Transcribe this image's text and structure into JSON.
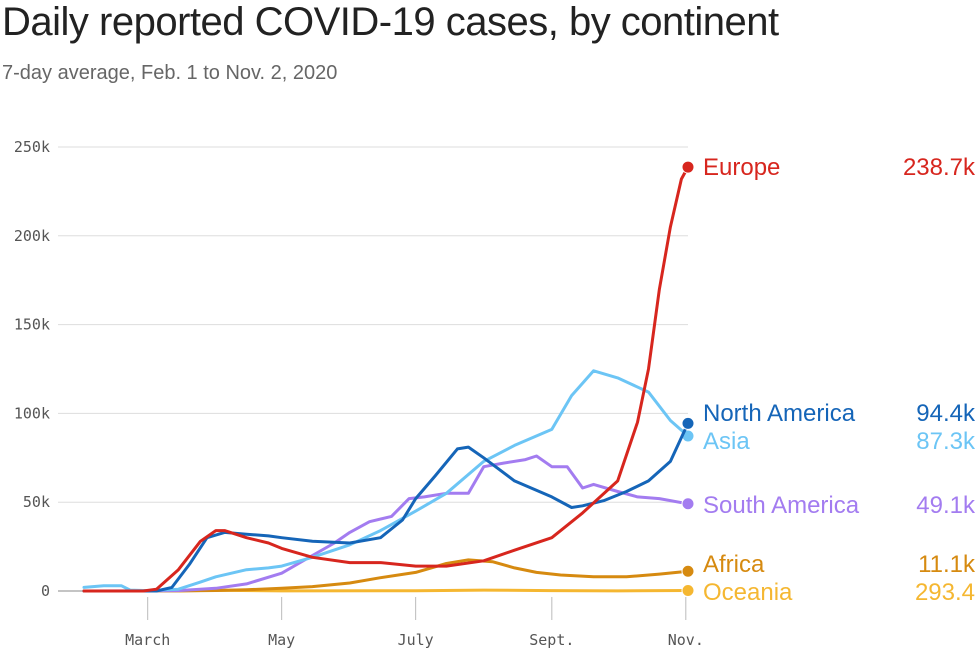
{
  "title": "Daily reported COVID-19 cases, by continent",
  "subtitle": "7-day average, Feb. 1 to Nov. 2, 2020",
  "chart_data": {
    "type": "line",
    "xlabel": "",
    "ylabel": "",
    "xlim": [
      "2020-02-01",
      "2020-11-02"
    ],
    "ylim": [
      0,
      250000
    ],
    "yticks": [
      0,
      50000,
      100000,
      150000,
      200000,
      250000
    ],
    "ytick_labels": [
      "0",
      "50k",
      "100k",
      "150k",
      "200k",
      "250k"
    ],
    "xticks": [
      "2020-03-01",
      "2020-05-01",
      "2020-07-01",
      "2020-09-01",
      "2020-11-01"
    ],
    "xtick_labels": [
      "March",
      "May",
      "July",
      "Sept.",
      "Nov."
    ],
    "grid": "horizontal",
    "legend": "end-of-line labels",
    "series": [
      {
        "name": "Oceania",
        "color": "#f5b731",
        "end_label": "293.4",
        "points": [
          [
            "2020-02-01",
            0
          ],
          [
            "2020-03-15",
            80
          ],
          [
            "2020-04-01",
            400
          ],
          [
            "2020-05-01",
            50
          ],
          [
            "2020-07-01",
            150
          ],
          [
            "2020-08-01",
            500
          ],
          [
            "2020-09-01",
            200
          ],
          [
            "2020-10-01",
            60
          ],
          [
            "2020-11-02",
            293
          ]
        ]
      },
      {
        "name": "Africa",
        "color": "#d68a10",
        "end_label": "11.1k",
        "points": [
          [
            "2020-02-01",
            0
          ],
          [
            "2020-03-15",
            50
          ],
          [
            "2020-04-01",
            300
          ],
          [
            "2020-04-15",
            700
          ],
          [
            "2020-05-01",
            1500
          ],
          [
            "2020-05-15",
            2500
          ],
          [
            "2020-06-01",
            4500
          ],
          [
            "2020-06-15",
            7500
          ],
          [
            "2020-07-01",
            10500
          ],
          [
            "2020-07-15",
            15500
          ],
          [
            "2020-07-25",
            17500
          ],
          [
            "2020-08-05",
            16500
          ],
          [
            "2020-08-15",
            13000
          ],
          [
            "2020-08-25",
            10500
          ],
          [
            "2020-09-05",
            9000
          ],
          [
            "2020-09-20",
            8000
          ],
          [
            "2020-10-05",
            8000
          ],
          [
            "2020-10-20",
            9500
          ],
          [
            "2020-11-02",
            11100
          ]
        ]
      },
      {
        "name": "South America",
        "color": "#a37cf0",
        "end_label": "49.1k",
        "points": [
          [
            "2020-02-01",
            0
          ],
          [
            "2020-03-15",
            200
          ],
          [
            "2020-04-01",
            1500
          ],
          [
            "2020-04-15",
            4000
          ],
          [
            "2020-05-01",
            10000
          ],
          [
            "2020-05-15",
            20000
          ],
          [
            "2020-05-25",
            27000
          ],
          [
            "2020-06-01",
            33000
          ],
          [
            "2020-06-10",
            39000
          ],
          [
            "2020-06-20",
            42000
          ],
          [
            "2020-06-28",
            52000
          ],
          [
            "2020-07-05",
            53000
          ],
          [
            "2020-07-15",
            55000
          ],
          [
            "2020-07-25",
            55000
          ],
          [
            "2020-08-01",
            70000
          ],
          [
            "2020-08-10",
            72000
          ],
          [
            "2020-08-20",
            74000
          ],
          [
            "2020-08-25",
            76000
          ],
          [
            "2020-09-01",
            70000
          ],
          [
            "2020-09-08",
            70000
          ],
          [
            "2020-09-15",
            58000
          ],
          [
            "2020-09-20",
            60000
          ],
          [
            "2020-10-01",
            56000
          ],
          [
            "2020-10-10",
            53000
          ],
          [
            "2020-10-20",
            52000
          ],
          [
            "2020-11-02",
            49100
          ]
        ]
      },
      {
        "name": "Asia",
        "color": "#6cc5f5",
        "end_label": "87.3k",
        "points": [
          [
            "2020-02-01",
            2000
          ],
          [
            "2020-02-10",
            3000
          ],
          [
            "2020-02-18",
            3000
          ],
          [
            "2020-02-22",
            500
          ],
          [
            "2020-03-01",
            200
          ],
          [
            "2020-03-15",
            1000
          ],
          [
            "2020-03-25",
            5000
          ],
          [
            "2020-04-01",
            8000
          ],
          [
            "2020-04-15",
            12000
          ],
          [
            "2020-04-25",
            13000
          ],
          [
            "2020-05-01",
            14000
          ],
          [
            "2020-05-15",
            19000
          ],
          [
            "2020-06-01",
            26000
          ],
          [
            "2020-06-15",
            34000
          ],
          [
            "2020-07-01",
            45000
          ],
          [
            "2020-07-15",
            55000
          ],
          [
            "2020-08-01",
            73000
          ],
          [
            "2020-08-15",
            82000
          ],
          [
            "2020-09-01",
            91000
          ],
          [
            "2020-09-10",
            110000
          ],
          [
            "2020-09-20",
            124000
          ],
          [
            "2020-10-01",
            120000
          ],
          [
            "2020-10-15",
            112000
          ],
          [
            "2020-10-25",
            96000
          ],
          [
            "2020-11-02",
            87300
          ]
        ]
      },
      {
        "name": "North America",
        "color": "#1565b8",
        "end_label": "94.4k",
        "points": [
          [
            "2020-02-01",
            0
          ],
          [
            "2020-03-05",
            0
          ],
          [
            "2020-03-12",
            2000
          ],
          [
            "2020-03-20",
            15000
          ],
          [
            "2020-03-28",
            30000
          ],
          [
            "2020-04-05",
            33000
          ],
          [
            "2020-04-15",
            32000
          ],
          [
            "2020-04-25",
            31000
          ],
          [
            "2020-05-01",
            30000
          ],
          [
            "2020-05-15",
            28000
          ],
          [
            "2020-06-01",
            27000
          ],
          [
            "2020-06-15",
            30000
          ],
          [
            "2020-06-25",
            40000
          ],
          [
            "2020-07-01",
            52000
          ],
          [
            "2020-07-10",
            65000
          ],
          [
            "2020-07-20",
            80000
          ],
          [
            "2020-07-25",
            81000
          ],
          [
            "2020-08-01",
            75000
          ],
          [
            "2020-08-15",
            62000
          ],
          [
            "2020-09-01",
            53000
          ],
          [
            "2020-09-10",
            47000
          ],
          [
            "2020-09-15",
            48000
          ],
          [
            "2020-09-25",
            51000
          ],
          [
            "2020-10-05",
            56000
          ],
          [
            "2020-10-15",
            62000
          ],
          [
            "2020-10-25",
            73000
          ],
          [
            "2020-11-02",
            94400
          ]
        ]
      },
      {
        "name": "Europe",
        "color": "#d7261e",
        "end_label": "238.7k",
        "points": [
          [
            "2020-02-01",
            0
          ],
          [
            "2020-02-28",
            0
          ],
          [
            "2020-03-05",
            1000
          ],
          [
            "2020-03-15",
            12000
          ],
          [
            "2020-03-25",
            28000
          ],
          [
            "2020-04-01",
            34000
          ],
          [
            "2020-04-05",
            34000
          ],
          [
            "2020-04-15",
            30000
          ],
          [
            "2020-04-25",
            27000
          ],
          [
            "2020-05-01",
            24000
          ],
          [
            "2020-05-15",
            19000
          ],
          [
            "2020-06-01",
            16000
          ],
          [
            "2020-06-15",
            16000
          ],
          [
            "2020-07-01",
            14000
          ],
          [
            "2020-07-15",
            14000
          ],
          [
            "2020-08-01",
            17000
          ],
          [
            "2020-08-15",
            23000
          ],
          [
            "2020-09-01",
            30000
          ],
          [
            "2020-09-15",
            44000
          ],
          [
            "2020-10-01",
            62000
          ],
          [
            "2020-10-10",
            95000
          ],
          [
            "2020-10-15",
            125000
          ],
          [
            "2020-10-20",
            170000
          ],
          [
            "2020-10-25",
            205000
          ],
          [
            "2020-10-30",
            232000
          ],
          [
            "2020-11-02",
            238700
          ]
        ]
      }
    ]
  }
}
